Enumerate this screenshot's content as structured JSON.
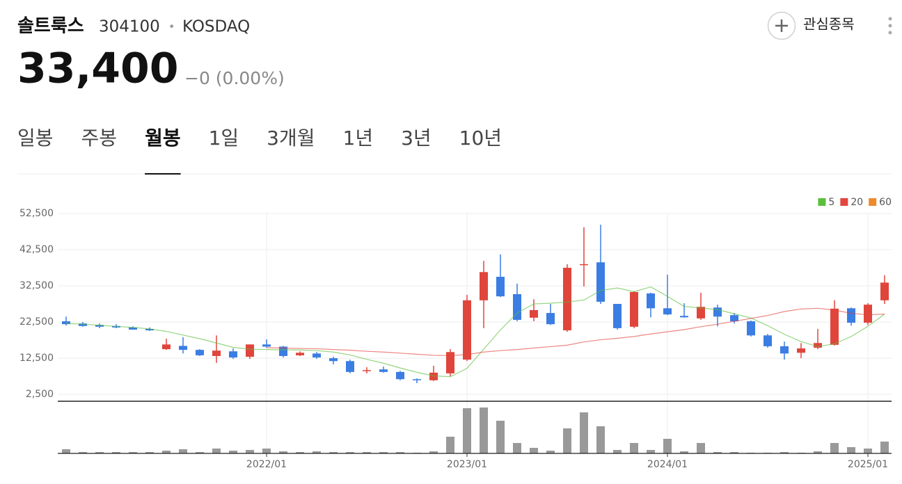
{
  "header": {
    "name": "솔트룩스",
    "code": "304100",
    "separator": "•",
    "market": "KOSDAQ",
    "price": "33,400",
    "change": "−0 (0.00%)",
    "watch": "관심종목"
  },
  "tabs": {
    "items": [
      "일봉",
      "주봉",
      "월봉",
      "1일",
      "3개월",
      "1년",
      "3년",
      "10년"
    ],
    "active": 2
  },
  "chart_data": {
    "type": "candlestick",
    "up_color": "#e0453c",
    "down_color": "#3b7de2",
    "volume_color": "#999999",
    "categories": [
      null,
      null,
      null,
      null,
      null,
      null,
      null,
      null,
      null,
      null,
      null,
      null,
      "2022/01",
      null,
      null,
      null,
      null,
      null,
      null,
      null,
      null,
      null,
      null,
      null,
      "2023/01",
      null,
      null,
      null,
      null,
      null,
      null,
      null,
      null,
      null,
      null,
      null,
      "2024/01",
      null,
      null,
      null,
      null,
      null,
      null,
      null,
      null,
      null,
      null,
      null,
      "2025/01",
      null
    ],
    "candles": [
      {
        "open": 22700,
        "high": 24000,
        "low": 21500,
        "close": 21900
      },
      {
        "open": 22100,
        "high": 22500,
        "low": 21200,
        "close": 21400
      },
      {
        "open": 21700,
        "high": 22100,
        "low": 20800,
        "close": 21200
      },
      {
        "open": 21400,
        "high": 21900,
        "low": 20800,
        "close": 21000
      },
      {
        "open": 21000,
        "high": 21300,
        "low": 20400,
        "close": 20400
      },
      {
        "open": 20600,
        "high": 21000,
        "low": 20000,
        "close": 20200
      },
      {
        "open": 15000,
        "high": 17900,
        "low": 14800,
        "close": 16300
      },
      {
        "open": 15900,
        "high": 18300,
        "low": 13800,
        "close": 14800
      },
      {
        "open": 14800,
        "high": 15000,
        "low": 13100,
        "close": 13300
      },
      {
        "open": 13100,
        "high": 18800,
        "low": 11200,
        "close": 14600
      },
      {
        "open": 14400,
        "high": 15200,
        "low": 12300,
        "close": 12700
      },
      {
        "open": 12900,
        "high": 16300,
        "low": 12300,
        "close": 16300
      },
      {
        "open": 16300,
        "high": 17700,
        "low": 15400,
        "close": 15700
      },
      {
        "open": 15700,
        "high": 15900,
        "low": 12700,
        "close": 13100
      },
      {
        "open": 13300,
        "high": 14400,
        "low": 13100,
        "close": 14000
      },
      {
        "open": 13800,
        "high": 14200,
        "low": 12300,
        "close": 12700
      },
      {
        "open": 12500,
        "high": 12900,
        "low": 10800,
        "close": 11700
      },
      {
        "open": 11700,
        "high": 12100,
        "low": 8300,
        "close": 8700
      },
      {
        "open": 9000,
        "high": 10000,
        "low": 8300,
        "close": 9200
      },
      {
        "open": 9400,
        "high": 10200,
        "low": 8500,
        "close": 8700
      },
      {
        "open": 8700,
        "high": 9000,
        "low": 6400,
        "close": 6700
      },
      {
        "open": 6700,
        "high": 6900,
        "low": 5600,
        "close": 6400
      },
      {
        "open": 6400,
        "high": 10400,
        "low": 6200,
        "close": 8500
      },
      {
        "open": 8300,
        "high": 15000,
        "low": 7500,
        "close": 14200
      },
      {
        "open": 12100,
        "high": 30000,
        "low": 11700,
        "close": 28500
      },
      {
        "open": 28500,
        "high": 39400,
        "low": 20800,
        "close": 36300
      },
      {
        "open": 35000,
        "high": 41200,
        "low": 29400,
        "close": 29600
      },
      {
        "open": 30200,
        "high": 33100,
        "low": 22700,
        "close": 23100
      },
      {
        "open": 23700,
        "high": 28800,
        "low": 22700,
        "close": 25800
      },
      {
        "open": 25000,
        "high": 27500,
        "low": 21700,
        "close": 21900
      },
      {
        "open": 20200,
        "high": 38500,
        "low": 19800,
        "close": 37500
      },
      {
        "open": 38300,
        "high": 48700,
        "low": 32300,
        "close": 38500
      },
      {
        "open": 39000,
        "high": 49400,
        "low": 27500,
        "close": 28100
      },
      {
        "open": 27500,
        "high": 27500,
        "low": 20400,
        "close": 20800
      },
      {
        "open": 21200,
        "high": 31000,
        "low": 20800,
        "close": 30800
      },
      {
        "open": 30400,
        "high": 30600,
        "low": 23800,
        "close": 26300
      },
      {
        "open": 26300,
        "high": 35600,
        "low": 24400,
        "close": 24600
      },
      {
        "open": 24200,
        "high": 27700,
        "low": 23700,
        "close": 23800
      },
      {
        "open": 23500,
        "high": 30600,
        "low": 23100,
        "close": 26700
      },
      {
        "open": 26500,
        "high": 27300,
        "low": 21300,
        "close": 24000
      },
      {
        "open": 24400,
        "high": 25000,
        "low": 22100,
        "close": 22700
      },
      {
        "open": 22700,
        "high": 22900,
        "low": 18500,
        "close": 18800
      },
      {
        "open": 18800,
        "high": 19200,
        "low": 15400,
        "close": 15800
      },
      {
        "open": 15800,
        "high": 17100,
        "low": 12100,
        "close": 13800
      },
      {
        "open": 14000,
        "high": 16700,
        "low": 12500,
        "close": 15200
      },
      {
        "open": 15400,
        "high": 20600,
        "low": 15000,
        "close": 16700
      },
      {
        "open": 16200,
        "high": 28500,
        "low": 16000,
        "close": 26200
      },
      {
        "open": 26300,
        "high": 26500,
        "low": 21500,
        "close": 22300
      },
      {
        "open": 22300,
        "high": 27700,
        "low": 21700,
        "close": 27300
      },
      {
        "open": 28500,
        "high": 35400,
        "low": 27500,
        "close": 33400
      }
    ],
    "volume": [
      6,
      2,
      2,
      2,
      2,
      2,
      4,
      6,
      2,
      7,
      4,
      5,
      7,
      3,
      2,
      3,
      2,
      2,
      2,
      2,
      2,
      1,
      3,
      24,
      65,
      66,
      47,
      15,
      8,
      4,
      36,
      59,
      39,
      5,
      15,
      5,
      21,
      3,
      15,
      2,
      2,
      1,
      1,
      2,
      1,
      3,
      15,
      9,
      7,
      17
    ],
    "series": [
      {
        "name": "5",
        "color": "#5bbf3c",
        "values": [
          22100,
          21900,
          21600,
          21300,
          21000,
          20600,
          19900,
          18900,
          17900,
          16700,
          15500,
          15000,
          14900,
          14800,
          14800,
          14600,
          14200,
          13400,
          12200,
          11100,
          9800,
          8600,
          7600,
          7400,
          9700,
          15000,
          20300,
          25000,
          27500,
          27700,
          28000,
          28600,
          31200,
          31900,
          30900,
          32200,
          29600,
          26800,
          26400,
          25900,
          24800,
          23600,
          21500,
          19100,
          17100,
          15700,
          16500,
          18500,
          21300,
          24700
        ]
      },
      {
        "name": "20",
        "color": "#e4453f",
        "values": [
          null,
          null,
          null,
          null,
          null,
          null,
          null,
          null,
          null,
          null,
          null,
          null,
          15400,
          15300,
          15200,
          15100,
          14900,
          14700,
          14400,
          14200,
          13900,
          13600,
          13300,
          13200,
          13500,
          14200,
          14600,
          14900,
          15300,
          15700,
          16100,
          17000,
          17600,
          18000,
          18500,
          19200,
          19800,
          20400,
          21200,
          21900,
          22700,
          23500,
          24300,
          25400,
          26100,
          26300,
          25800,
          24900,
          24500,
          24700
        ]
      },
      {
        "name": "60",
        "color": "#ee8a2d",
        "values": [
          null,
          null,
          null,
          null,
          null,
          null,
          null,
          null,
          null,
          null,
          null,
          null,
          null,
          null,
          null,
          null,
          null,
          null,
          null,
          null,
          null,
          null,
          null,
          null,
          null,
          null,
          null,
          null,
          null,
          null,
          null,
          null,
          null,
          null,
          null,
          null,
          null,
          null,
          null,
          null,
          null,
          null,
          null,
          null,
          null,
          null,
          null,
          null,
          null,
          null
        ]
      }
    ],
    "ylim": [
      600,
      52500
    ],
    "yticks": [
      {
        "value": 2500,
        "label": "2,500"
      },
      {
        "value": 12500,
        "label": "12,500"
      },
      {
        "value": 22500,
        "label": "22,500"
      },
      {
        "value": 32500,
        "label": "32,500"
      },
      {
        "value": 42500,
        "label": "42,500"
      },
      {
        "value": 52500,
        "label": "52,500"
      }
    ],
    "grid": true,
    "legend": "top-right"
  }
}
